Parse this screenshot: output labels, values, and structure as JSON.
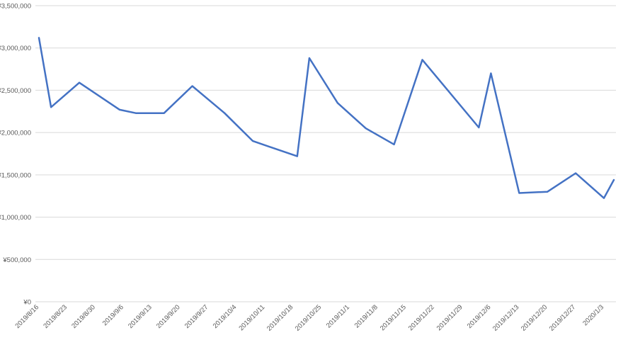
{
  "chart_data": {
    "type": "line",
    "title": "",
    "xlabel": "",
    "ylabel": "",
    "x_tick_labels": [
      "2019/8/16",
      "2019/8/23",
      "2019/8/30",
      "2019/9/6",
      "2019/9/13",
      "2019/9/20",
      "2019/9/27",
      "2019/10/4",
      "2019/10/11",
      "2019/10/18",
      "2019/10/25",
      "2019/11/1",
      "2019/11/8",
      "2019/11/15",
      "2019/11/22",
      "2019/11/29",
      "2019/12/6",
      "2019/12/13",
      "2019/12/20",
      "2019/12/27",
      "2020/1/3"
    ],
    "y_tick_labels": [
      "¥0",
      "¥500,000",
      "¥1,000,000",
      "¥1,500,000",
      "¥2,000,000",
      "¥2,500,000",
      "¥3,000,000",
      "¥3,500,000"
    ],
    "ylim": [
      0,
      3500000
    ],
    "xlim": [
      "2019/8/16",
      "2020/1/6"
    ],
    "grid": true,
    "color": "#4472C4",
    "points": [
      {
        "x": "2019/8/16",
        "y": 3120000
      },
      {
        "x": "2019/8/19",
        "y": 2300000
      },
      {
        "x": "2019/8/26",
        "y": 2590000
      },
      {
        "x": "2019/9/5",
        "y": 2270000
      },
      {
        "x": "2019/9/9",
        "y": 2230000
      },
      {
        "x": "2019/9/16",
        "y": 2230000
      },
      {
        "x": "2019/9/23",
        "y": 2550000
      },
      {
        "x": "2019/10/1",
        "y": 2230000
      },
      {
        "x": "2019/10/8",
        "y": 1900000
      },
      {
        "x": "2019/10/19",
        "y": 1720000
      },
      {
        "x": "2019/10/22",
        "y": 2880000
      },
      {
        "x": "2019/10/29",
        "y": 2350000
      },
      {
        "x": "2019/11/5",
        "y": 2050000
      },
      {
        "x": "2019/11/12",
        "y": 1860000
      },
      {
        "x": "2019/11/19",
        "y": 2860000
      },
      {
        "x": "2019/12/3",
        "y": 2060000
      },
      {
        "x": "2019/12/6",
        "y": 2700000
      },
      {
        "x": "2019/12/13",
        "y": 1285000
      },
      {
        "x": "2019/12/20",
        "y": 1300000
      },
      {
        "x": "2019/12/27",
        "y": 1520000
      },
      {
        "x": "2020/1/3",
        "y": 1225000
      },
      {
        "x": "2020/1/10",
        "y": 1440000
      }
    ]
  }
}
